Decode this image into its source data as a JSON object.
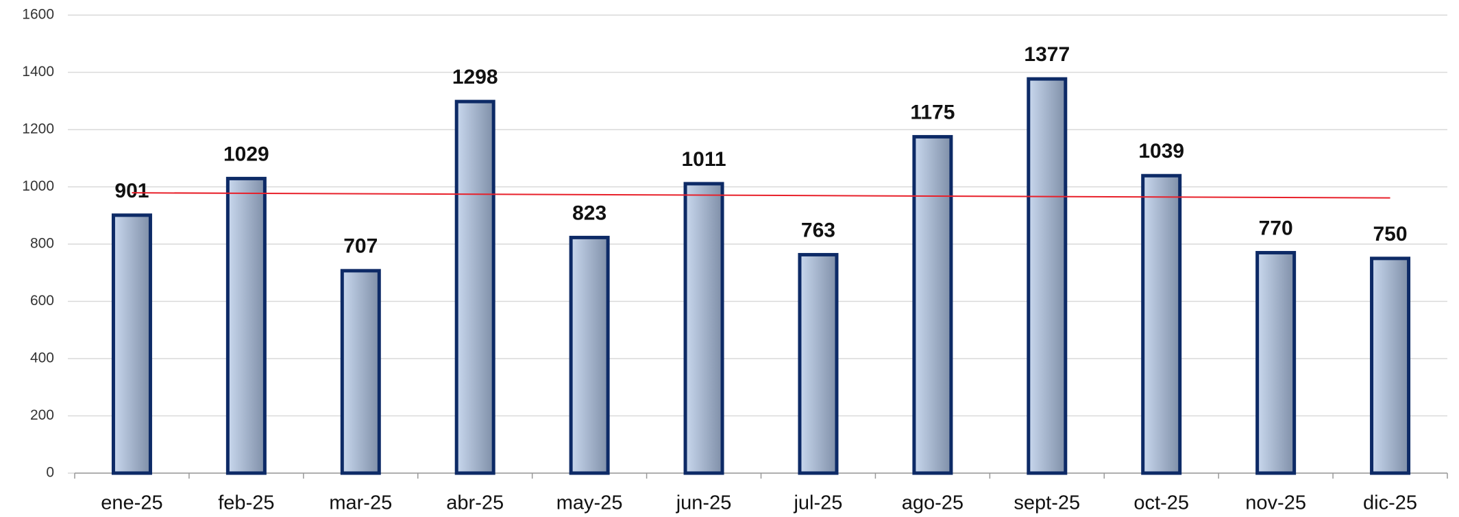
{
  "chart_data": {
    "type": "bar",
    "categories": [
      "ene-25",
      "feb-25",
      "mar-25",
      "abr-25",
      "may-25",
      "jun-25",
      "jul-25",
      "ago-25",
      "sept-25",
      "oct-25",
      "nov-25",
      "dic-25"
    ],
    "values": [
      901,
      1029,
      707,
      1298,
      823,
      1011,
      763,
      1175,
      1377,
      1039,
      770,
      750
    ],
    "color": "#0d2a66",
    "fill_light": "#c9d8ee",
    "fill_dark": "#7f8fa8",
    "ylim": [
      0,
      1600
    ],
    "yticks": [
      0,
      200,
      400,
      600,
      800,
      1000,
      1200,
      1400,
      1600
    ],
    "grid": true,
    "trendline": true,
    "trendline_color": "#e8202a"
  }
}
